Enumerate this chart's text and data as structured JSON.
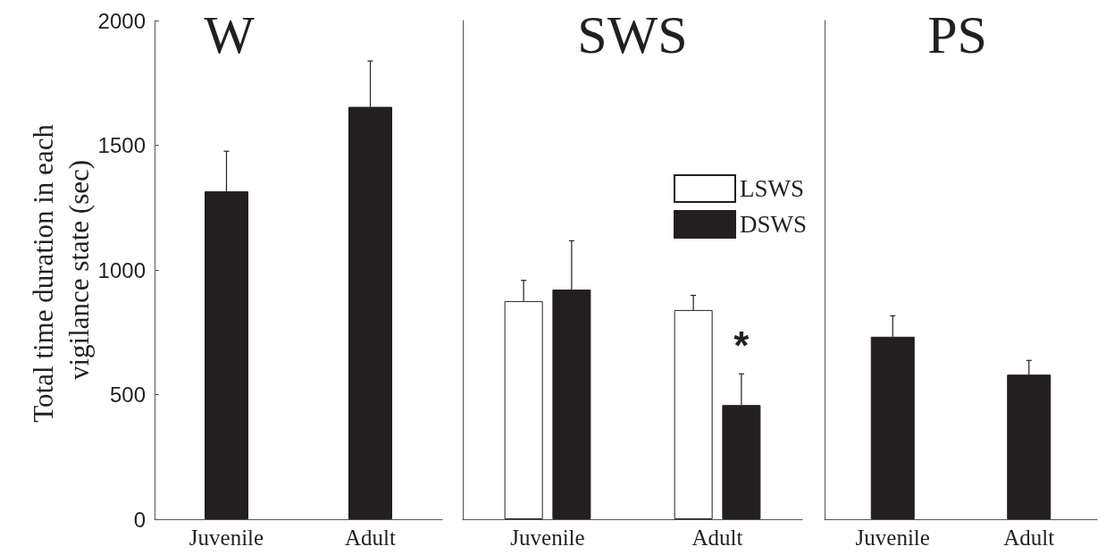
{
  "chart_data": [
    {
      "type": "bar",
      "title": "W",
      "ylabel": "Total time duration in each vigilance state (sec)",
      "categories": [
        "Juvenile",
        "Adult"
      ],
      "ylim": [
        0,
        2000
      ],
      "yticks": [
        0,
        500,
        1000,
        1500,
        2000
      ],
      "series": [
        {
          "color": "#231f20",
          "values": [
            1315,
            1654
          ],
          "errors": [
            [
              1315,
              1476
            ],
            [
              1654,
              1838
            ]
          ]
        }
      ]
    },
    {
      "type": "bar",
      "title": "SWS",
      "categories": [
        "Juvenile",
        "Adult"
      ],
      "ylim": [
        0,
        2000
      ],
      "tick_labels": "x",
      "legend": "top right",
      "annotations": [
        "*"
      ],
      "series": [
        {
          "name": "LSWS",
          "color": "#ffffff",
          "values": [
            875,
            839
          ],
          "errors": [
            [
              875,
              958
            ],
            [
              839,
              898
            ]
          ]
        },
        {
          "name": "DSWS",
          "color": "#231f20",
          "values": [
            921,
            458
          ],
          "errors": [
            [
              921,
              1117
            ],
            [
              458,
              583
            ]
          ]
        }
      ]
    },
    {
      "type": "bar",
      "title": "PS",
      "categories": [
        "Juvenile",
        "Adult"
      ],
      "ylim": [
        0,
        2000
      ],
      "tick_labels": "x",
      "series": [
        {
          "color": "#231f20",
          "values": [
            732,
            580
          ],
          "errors": [
            [
              732,
              816
            ],
            [
              580,
              637
            ]
          ]
        }
      ]
    }
  ]
}
